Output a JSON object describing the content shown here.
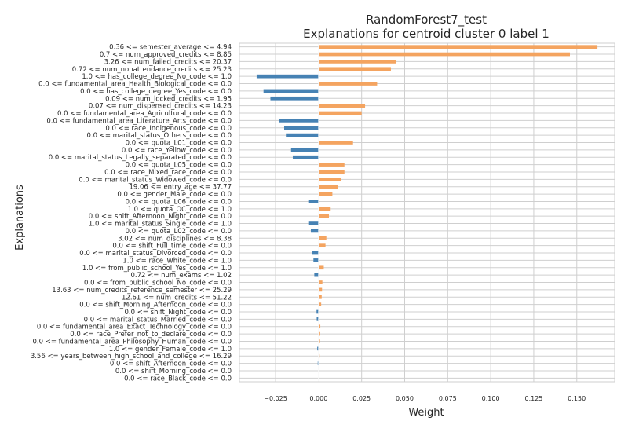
{
  "chart_data": {
    "type": "bar",
    "orientation": "horizontal",
    "title": [
      "RandomForest7_test",
      "Explanations for centroid cluster 0 label 1"
    ],
    "xlabel": "Weight",
    "ylabel": "Explanations",
    "xlim": [
      -0.046,
      0.172
    ],
    "xticks": [
      -0.025,
      0.0,
      0.025,
      0.05,
      0.075,
      0.1,
      0.125,
      0.15
    ],
    "xtick_labels": [
      "−0.025",
      "0.000",
      "0.025",
      "0.050",
      "0.075",
      "0.100",
      "0.125",
      "0.150"
    ],
    "grid": true,
    "colors": {
      "positive": "#F4A460",
      "negative": "#4682B4"
    },
    "categories": [
      "0.36 <= semester_average <= 4.94",
      "0.7 <= num_approved_credits <= 8.85",
      "3.26 <= num_failed_credits <= 20.37",
      "0.72 <= num_nonattendance_credits <= 25.23",
      "1.0 <= has_college_degree_No_code <= 1.0",
      "0.0 <= fundamental_area_Health_Biological_code <= 0.0",
      "0.0 <= has_college_degree_Yes_code <= 0.0",
      "0.09 <= num_locked_credits <= 1.95",
      "0.07 <= num_dispensed_credits <= 14.23",
      "0.0 <= fundamental_area_Agricultural_code <= 0.0",
      "0.0 <= fundamental_area_Literature_Arts_code <= 0.0",
      "0.0 <= race_Indigenous_code <= 0.0",
      "0.0 <= marital_status_Others_code <= 0.0",
      "0.0 <= quota_L01_code <= 0.0",
      "0.0 <= race_Yellow_code <= 0.0",
      "0.0 <= marital_status_Legally_separated_code <= 0.0",
      "0.0 <= quota_L05_code <= 0.0",
      "0.0 <= race_Mixed_race_code <= 0.0",
      "0.0 <= marital_status_Widowed_code <= 0.0",
      "19.06 <= entry_age <= 37.77",
      "0.0 <= gender_Male_code <= 0.0",
      "0.0 <= quota_L06_code <= 0.0",
      "1.0 <= quota_OC_code <= 1.0",
      "0.0 <= shift_Afternoon_Night_code <= 0.0",
      "1.0 <= marital_status_Single_code <= 1.0",
      "0.0 <= quota_L02_code <= 0.0",
      "3.02 <= num_disciplines <= 8.38",
      "0.0 <= shift_Full_time_code <= 0.0",
      "0.0 <= marital_status_Divorced_code <= 0.0",
      "1.0 <= race_White_code <= 1.0",
      "1.0 <= from_public_school_Yes_code <= 1.0",
      "0.72 <= num_exams <= 1.02",
      "0.0 <= from_public_school_No_code <= 0.0",
      "13.63 <= num_credits_reference_semester <= 25.29",
      "12.61 <= num_credits <= 51.22",
      "0.0 <= shift_Morning_Afternoon_code <= 0.0",
      "0.0 <= shift_Night_code <= 0.0",
      "0.0 <= marital_status_Married_code <= 0.0",
      "0.0 <= fundamental_area_Exact_Technology_code <= 0.0",
      "0.0 <= race_Prefer_not_to_declare_code <= 0.0",
      "0.0 <= fundamental_area_Philosophy_Human_code <= 0.0",
      "1.0 <= gender_Female_code <= 1.0",
      "3.56 <= years_between_high_school_and_college <= 16.29",
      "0.0 <= shift_Afternoon_code <= 0.0",
      "0.0 <= shift_Morning_code <= 0.0",
      "0.0 <= race_Black_code <= 0.0"
    ],
    "values": [
      0.162,
      0.146,
      0.045,
      0.042,
      -0.036,
      0.034,
      -0.032,
      -0.028,
      0.027,
      0.025,
      -0.023,
      -0.02,
      -0.019,
      0.02,
      -0.016,
      -0.015,
      0.015,
      0.015,
      0.013,
      0.011,
      0.008,
      -0.006,
      0.007,
      0.006,
      -0.006,
      -0.0045,
      0.0045,
      0.004,
      -0.004,
      -0.003,
      0.003,
      -0.0025,
      0.0022,
      0.002,
      0.0018,
      0.0015,
      -0.0012,
      -0.0011,
      0.001,
      0.0009,
      0.0008,
      -0.0008,
      0.0006,
      -0.0005,
      0.0004,
      0.0003
    ]
  }
}
